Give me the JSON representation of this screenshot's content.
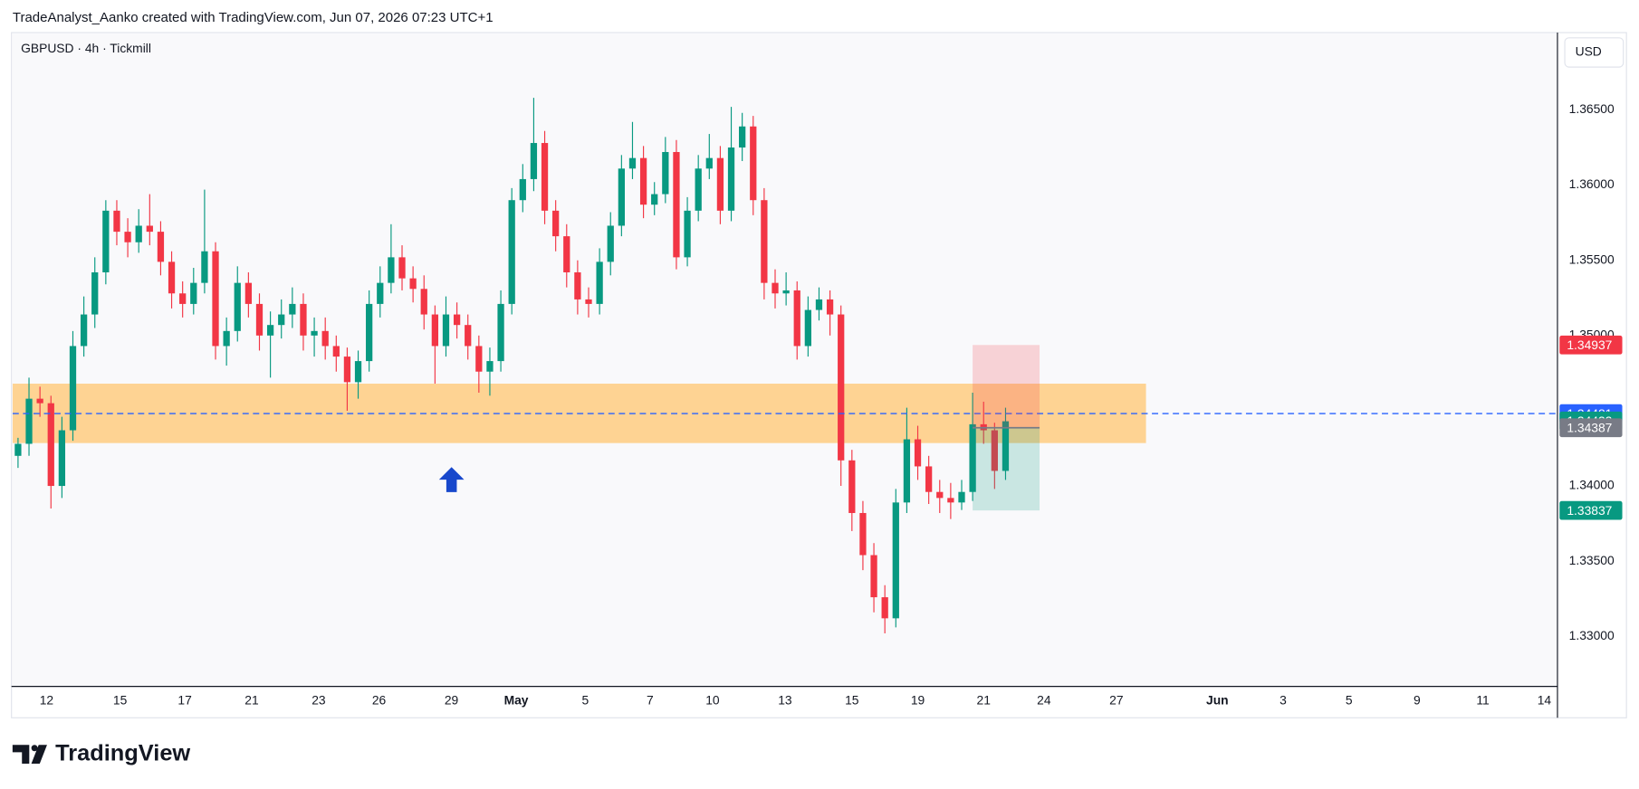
{
  "header": "TradeAnalyst_Aanko created with TradingView.com, Jun 07, 2026 07:23 UTC+1",
  "footer": "TradingView",
  "chart_data": {
    "type": "candlestick",
    "title": "GBPUSD · 4h · Tickmill",
    "currency": "USD",
    "up_color": "#089981",
    "down_color": "#f23645",
    "open": [
      1.342,
      1.3428,
      1.3458,
      1.3455,
      1.34,
      1.3437,
      1.3493,
      1.3514,
      1.3542,
      1.3583,
      1.3569,
      1.3562,
      1.3573,
      1.3569,
      1.3549,
      1.3528,
      1.3521,
      1.3535,
      1.3556,
      1.3493,
      1.3503,
      1.3535,
      1.3521,
      1.35,
      1.3507,
      1.3514,
      1.3521,
      1.35,
      1.3503,
      1.3493,
      1.3486,
      1.3469,
      1.3483,
      1.3521,
      1.3535,
      1.3552,
      1.3538,
      1.3531,
      1.3514,
      1.3493,
      1.3514,
      1.3507,
      1.3493,
      1.3476,
      1.3483,
      1.3521,
      1.359,
      1.3604,
      1.3628,
      1.3583,
      1.3566,
      1.3542,
      1.3524,
      1.3521,
      1.3549,
      1.3573,
      1.3611,
      1.3618,
      1.3587,
      1.3594,
      1.3622,
      1.3552,
      1.3583,
      1.3611,
      1.3618,
      1.3583,
      1.3625,
      1.3639,
      1.359,
      1.3535,
      1.3528,
      1.353,
      1.3493,
      1.3517,
      1.3524,
      1.3514,
      1.3417,
      1.3382,
      1.3354,
      1.3326,
      1.3312,
      1.3389,
      1.3431,
      1.3413,
      1.3396,
      1.3392,
      1.3389,
      1.3396,
      1.3441,
      1.3437,
      1.341
    ],
    "high": [
      1.3432,
      1.3472,
      1.3466,
      1.346,
      1.3446,
      1.3503,
      1.3526,
      1.3552,
      1.359,
      1.359,
      1.3578,
      1.3584,
      1.3594,
      1.3576,
      1.3556,
      1.3536,
      1.3545,
      1.3597,
      1.3562,
      1.3512,
      1.3546,
      1.3542,
      1.3528,
      1.3516,
      1.3524,
      1.3532,
      1.3528,
      1.3512,
      1.3512,
      1.35,
      1.3492,
      1.349,
      1.353,
      1.3546,
      1.3574,
      1.356,
      1.3546,
      1.354,
      1.352,
      1.3526,
      1.3522,
      1.3514,
      1.35,
      1.3492,
      1.353,
      1.3598,
      1.3614,
      1.3658,
      1.3636,
      1.359,
      1.3574,
      1.355,
      1.3532,
      1.3558,
      1.3582,
      1.362,
      1.3642,
      1.3626,
      1.3602,
      1.3632,
      1.363,
      1.3592,
      1.362,
      1.3634,
      1.3626,
      1.3652,
      1.3648,
      1.3646,
      1.3598,
      1.3544,
      1.3542,
      1.3536,
      1.3526,
      1.3532,
      1.353,
      1.352,
      1.3424,
      1.339,
      1.3362,
      1.3334,
      1.3398,
      1.3452,
      1.344,
      1.342,
      1.3404,
      1.3402,
      1.3404,
      1.3462,
      1.3456,
      1.3442,
      1.3452
    ],
    "low": [
      1.3412,
      1.342,
      1.3446,
      1.3385,
      1.3392,
      1.343,
      1.3486,
      1.3505,
      1.3534,
      1.356,
      1.3552,
      1.3555,
      1.356,
      1.354,
      1.3518,
      1.3512,
      1.3514,
      1.3528,
      1.3484,
      1.348,
      1.3496,
      1.3512,
      1.349,
      1.3472,
      1.3498,
      1.3505,
      1.349,
      1.3486,
      1.3484,
      1.3476,
      1.345,
      1.3458,
      1.3476,
      1.3512,
      1.3528,
      1.353,
      1.3522,
      1.3504,
      1.3468,
      1.3486,
      1.3498,
      1.3484,
      1.3462,
      1.346,
      1.3476,
      1.3514,
      1.3582,
      1.3596,
      1.3574,
      1.3556,
      1.3532,
      1.3514,
      1.3512,
      1.3514,
      1.354,
      1.3566,
      1.3604,
      1.3578,
      1.358,
      1.3588,
      1.3544,
      1.3546,
      1.3576,
      1.3604,
      1.3574,
      1.3576,
      1.3616,
      1.358,
      1.3524,
      1.3518,
      1.352,
      1.3484,
      1.3486,
      1.351,
      1.35,
      1.34,
      1.337,
      1.3344,
      1.3316,
      1.3302,
      1.3306,
      1.3382,
      1.3404,
      1.3388,
      1.3382,
      1.3378,
      1.3384,
      1.339,
      1.3428,
      1.3398,
      1.3404
    ],
    "close": [
      1.3428,
      1.3458,
      1.3455,
      1.34,
      1.3437,
      1.3493,
      1.3514,
      1.3542,
      1.3583,
      1.3569,
      1.3562,
      1.3573,
      1.3569,
      1.3549,
      1.3528,
      1.3521,
      1.3535,
      1.3556,
      1.3493,
      1.3503,
      1.3535,
      1.3521,
      1.35,
      1.3507,
      1.3514,
      1.3521,
      1.35,
      1.3503,
      1.3493,
      1.3486,
      1.3469,
      1.3483,
      1.3521,
      1.3535,
      1.3552,
      1.3538,
      1.3531,
      1.3514,
      1.3493,
      1.3514,
      1.3507,
      1.3493,
      1.3476,
      1.3483,
      1.3521,
      1.359,
      1.3604,
      1.3628,
      1.3583,
      1.3566,
      1.3542,
      1.3524,
      1.3521,
      1.3549,
      1.3573,
      1.3611,
      1.3618,
      1.3587,
      1.3594,
      1.3622,
      1.3552,
      1.3583,
      1.3611,
      1.3618,
      1.3583,
      1.3625,
      1.3639,
      1.359,
      1.3535,
      1.3528,
      1.353,
      1.3493,
      1.3517,
      1.3524,
      1.3514,
      1.3417,
      1.3382,
      1.3354,
      1.3326,
      1.3312,
      1.3389,
      1.3431,
      1.3413,
      1.3396,
      1.3392,
      1.3389,
      1.3396,
      1.3441,
      1.3437,
      1.341,
      1.3443
    ],
    "xlim": [
      -0.5,
      140.3
    ],
    "xticks": [
      {
        "value": 2.6,
        "label": "12"
      },
      {
        "value": 9.3,
        "label": "15"
      },
      {
        "value": 15.2,
        "label": "17"
      },
      {
        "value": 21.3,
        "label": "21"
      },
      {
        "value": 27.4,
        "label": "23"
      },
      {
        "value": 32.9,
        "label": "26"
      },
      {
        "value": 39.5,
        "label": "29"
      },
      {
        "value": 45.4,
        "label": "May"
      },
      {
        "value": 51.7,
        "label": "5"
      },
      {
        "value": 57.6,
        "label": "7"
      },
      {
        "value": 63.3,
        "label": "10"
      },
      {
        "value": 69.9,
        "label": "13"
      },
      {
        "value": 76,
        "label": "15"
      },
      {
        "value": 82,
        "label": "19"
      },
      {
        "value": 88,
        "label": "21"
      },
      {
        "value": 93.5,
        "label": "24"
      },
      {
        "value": 100.1,
        "label": "27"
      },
      {
        "value": 109.3,
        "label": "Jun"
      },
      {
        "value": 115.3,
        "label": "3"
      },
      {
        "value": 121.3,
        "label": "5"
      },
      {
        "value": 127.5,
        "label": "9"
      },
      {
        "value": 133.5,
        "label": "11"
      },
      {
        "value": 139.1,
        "label": "14"
      }
    ],
    "ylim": [
      1.32674,
      1.37014
    ],
    "yticks": [
      {
        "value": 1.33,
        "label": "1.33000"
      },
      {
        "value": 1.335,
        "label": "1.33500"
      },
      {
        "value": 1.34,
        "label": "1.34000"
      },
      {
        "value": 1.35,
        "label": "1.35000"
      },
      {
        "value": 1.355,
        "label": "1.35500"
      },
      {
        "value": 1.36,
        "label": "1.36000"
      },
      {
        "value": 1.365,
        "label": "1.36500"
      }
    ],
    "grid": false,
    "zone": {
      "low": 1.34285,
      "high": 1.3468,
      "xrange": [
        -0.5,
        102.8
      ],
      "color": "#ffcc80"
    },
    "horizontal_line": {
      "value": 1.34481,
      "color": "#2962ff"
    },
    "last_price": {
      "value": 1.34432,
      "color": "#089981"
    },
    "position": {
      "stop": 1.34937,
      "entry": 1.34387,
      "target": 1.33837,
      "xrange": [
        87,
        93.1
      ],
      "stop_color": "#f23645",
      "entry_color": "#787b86",
      "target_color": "#089981"
    }
  }
}
